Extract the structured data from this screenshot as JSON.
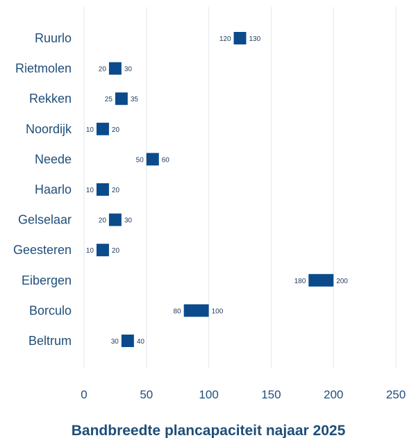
{
  "chart_data": {
    "type": "bar",
    "title": "Bandbreedte plancapaciteit najaar 2025",
    "xlim": [
      0,
      250
    ],
    "xticks": [
      0,
      50,
      100,
      150,
      200,
      250
    ],
    "grid": true,
    "categories": [
      "Ruurlo",
      "Rietmolen",
      "Rekken",
      "Noordijk",
      "Neede",
      "Haarlo",
      "Gelselaar",
      "Geesteren",
      "Eibergen",
      "Borculo",
      "Beltrum"
    ],
    "series": [
      {
        "low": [
          120,
          20,
          25,
          10,
          50,
          10,
          20,
          10,
          180,
          80,
          30
        ],
        "high": [
          130,
          30,
          35,
          20,
          60,
          20,
          30,
          20,
          200,
          100,
          40
        ]
      }
    ],
    "bar_color": "#0b4a8b",
    "text_color": "#1f4e79"
  }
}
